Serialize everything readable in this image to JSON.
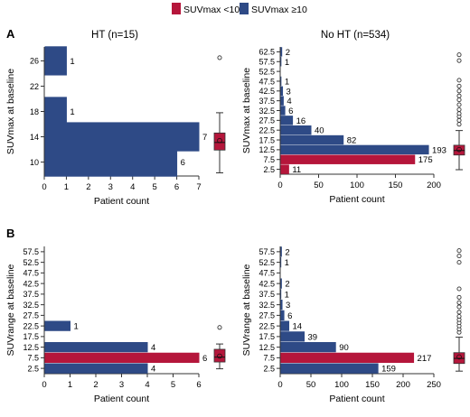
{
  "legend": {
    "position": "top-center",
    "items": [
      {
        "label": "SUVmax <10",
        "color": "#b5163b"
      },
      {
        "label": "SUVmax ≥10",
        "color": "#2e4a86"
      }
    ]
  },
  "colors": {
    "low": "#b5163b",
    "high": "#2e4a86"
  },
  "chart_data": [
    {
      "type": "bar",
      "orientation": "horizontal",
      "panel_label": "A",
      "title": "HT (n=15)",
      "xlabel": "Patient count",
      "ylabel": "SUVmax at baseline",
      "xlim": [
        0,
        7
      ],
      "xticks": [
        0,
        1,
        2,
        3,
        4,
        5,
        6,
        7
      ],
      "ylim": [
        7.8,
        28.2
      ],
      "yticks": [
        "10",
        "14",
        "18",
        "22",
        "26"
      ],
      "grid": false,
      "boxplot": {
        "whisker_low": 8.3,
        "q1": 11.9,
        "median": 13.1,
        "mean": 13.4,
        "q3": 14.6,
        "whisker_high": 17.8,
        "outliers": [
          26.5
        ]
      },
      "bars": [
        {
          "y": 26,
          "value": 1,
          "series": "SUVmax ≥10",
          "label": "1"
        },
        {
          "y": 18,
          "value": 1,
          "series": "SUVmax ≥10",
          "label": "1"
        },
        {
          "y": 14,
          "value": 7,
          "series": "SUVmax ≥10",
          "label": "7"
        },
        {
          "y": 10,
          "value": 6,
          "series": "SUVmax ≥10",
          "label": "6"
        }
      ]
    },
    {
      "type": "bar",
      "orientation": "horizontal",
      "panel_label": "",
      "title": "No HT (n=534)",
      "xlabel": "Patient count",
      "ylabel": "SUVmax at baseline",
      "xlim": [
        0,
        200
      ],
      "xticks": [
        0,
        50,
        100,
        150,
        200
      ],
      "ylim": [
        0,
        65
      ],
      "yticks": [
        "2.5",
        "7.5",
        "12.5",
        "17.5",
        "22.5",
        "27.5",
        "32.5",
        "37.5",
        "42.5",
        "47.5",
        "52.5",
        "57.5",
        "62.5"
      ],
      "grid": false,
      "boxplot": {
        "whisker_low": 2.3,
        "q1": 9.8,
        "median": 12.1,
        "mean": 12.6,
        "q3": 14.8,
        "whisker_high": 22.3,
        "outliers": [
          25.5,
          27.5,
          29.5,
          31.0,
          33.0,
          35.5,
          38.0,
          40.0,
          42.5,
          45.0,
          48.0,
          58.0,
          61.0
        ]
      },
      "bars": [
        {
          "y": 62.5,
          "value": 2,
          "series": "SUVmax ≥10",
          "label": "2"
        },
        {
          "y": 57.5,
          "value": 1,
          "series": "SUVmax ≥10",
          "label": "1"
        },
        {
          "y": 47.5,
          "value": 1,
          "series": "SUVmax ≥10",
          "label": "1"
        },
        {
          "y": 42.5,
          "value": 3,
          "series": "SUVmax ≥10",
          "label": "3"
        },
        {
          "y": 37.5,
          "value": 4,
          "series": "SUVmax ≥10",
          "label": "4"
        },
        {
          "y": 32.5,
          "value": 6,
          "series": "SUVmax ≥10",
          "label": "6"
        },
        {
          "y": 27.5,
          "value": 16,
          "series": "SUVmax ≥10",
          "label": "16"
        },
        {
          "y": 22.5,
          "value": 40,
          "series": "SUVmax ≥10",
          "label": "40"
        },
        {
          "y": 17.5,
          "value": 82,
          "series": "SUVmax ≥10",
          "label": "82"
        },
        {
          "y": 12.5,
          "value": 193,
          "series": "SUVmax ≥10",
          "label": "193"
        },
        {
          "y": 7.5,
          "value": 175,
          "series": "SUVmax <10",
          "label": "175"
        },
        {
          "y": 2.5,
          "value": 11,
          "series": "SUVmax <10",
          "label": "11"
        }
      ]
    },
    {
      "type": "bar",
      "orientation": "horizontal",
      "panel_label": "B",
      "title": "",
      "xlabel": "Patient count",
      "ylabel": "SUVrange at baseline",
      "xlim": [
        0,
        6
      ],
      "xticks": [
        0,
        1,
        2,
        3,
        4,
        5,
        6
      ],
      "ylim": [
        0,
        60
      ],
      "yticks": [
        "2.5",
        "7.5",
        "12.5",
        "17.5",
        "22.5",
        "27.5",
        "32.5",
        "37.5",
        "42.5",
        "47.5",
        "52.5",
        "57.5"
      ],
      "grid": false,
      "boxplot": {
        "whisker_low": 2.3,
        "q1": 5.5,
        "median": 7.8,
        "mean": 8.3,
        "q3": 11.5,
        "whisker_high": 14.0,
        "outliers": [
          21.8
        ]
      },
      "bars": [
        {
          "y": 22.5,
          "value": 1,
          "series": "SUVmax ≥10",
          "label": "1"
        },
        {
          "y": 12.5,
          "value": 4,
          "series": "SUVmax ≥10",
          "label": "4"
        },
        {
          "y": 7.5,
          "value": 6,
          "series": "SUVmax <10",
          "label": "6"
        },
        {
          "y": 2.5,
          "value": 4,
          "series": "SUVmax ≥10",
          "label": "4"
        }
      ]
    },
    {
      "type": "bar",
      "orientation": "horizontal",
      "panel_label": "",
      "title": "",
      "xlabel": "Patient count",
      "ylabel": "SUVrange at baseline",
      "xlim": [
        0,
        250
      ],
      "xticks": [
        0,
        50,
        100,
        150,
        200,
        250
      ],
      "ylim": [
        0,
        60
      ],
      "yticks": [
        "2.5",
        "7.5",
        "12.5",
        "17.5",
        "22.5",
        "27.5",
        "32.5",
        "37.5",
        "42.5",
        "47.5",
        "52.5",
        "57.5"
      ],
      "grid": false,
      "boxplot": {
        "whisker_low": 1.2,
        "q1": 4.8,
        "median": 7.2,
        "mean": 7.9,
        "q3": 9.9,
        "whisker_high": 17.2,
        "outliers": [
          19.5,
          21.0,
          22.5,
          24.0,
          25.5,
          27.0,
          29.0,
          31.5,
          33.5,
          36.0,
          40.0,
          52.5,
          55.5,
          58.0
        ]
      },
      "bars": [
        {
          "y": 57.5,
          "value": 2,
          "series": "SUVmax ≥10",
          "label": "2"
        },
        {
          "y": 52.5,
          "value": 1,
          "series": "SUVmax ≥10",
          "label": "1"
        },
        {
          "y": 42.5,
          "value": 2,
          "series": "SUVmax ≥10",
          "label": "2"
        },
        {
          "y": 37.5,
          "value": 1,
          "series": "SUVmax ≥10",
          "label": "1"
        },
        {
          "y": 32.5,
          "value": 3,
          "series": "SUVmax ≥10",
          "label": "3"
        },
        {
          "y": 27.5,
          "value": 6,
          "series": "SUVmax ≥10",
          "label": "6"
        },
        {
          "y": 22.5,
          "value": 14,
          "series": "SUVmax ≥10",
          "label": "14"
        },
        {
          "y": 17.5,
          "value": 39,
          "series": "SUVmax ≥10",
          "label": "39"
        },
        {
          "y": 12.5,
          "value": 90,
          "series": "SUVmax ≥10",
          "label": "90"
        },
        {
          "y": 7.5,
          "value": 217,
          "series": "SUVmax <10",
          "label": "217"
        },
        {
          "y": 2.5,
          "value": 159,
          "series": "SUVmax ≥10",
          "label": "159"
        }
      ]
    }
  ]
}
